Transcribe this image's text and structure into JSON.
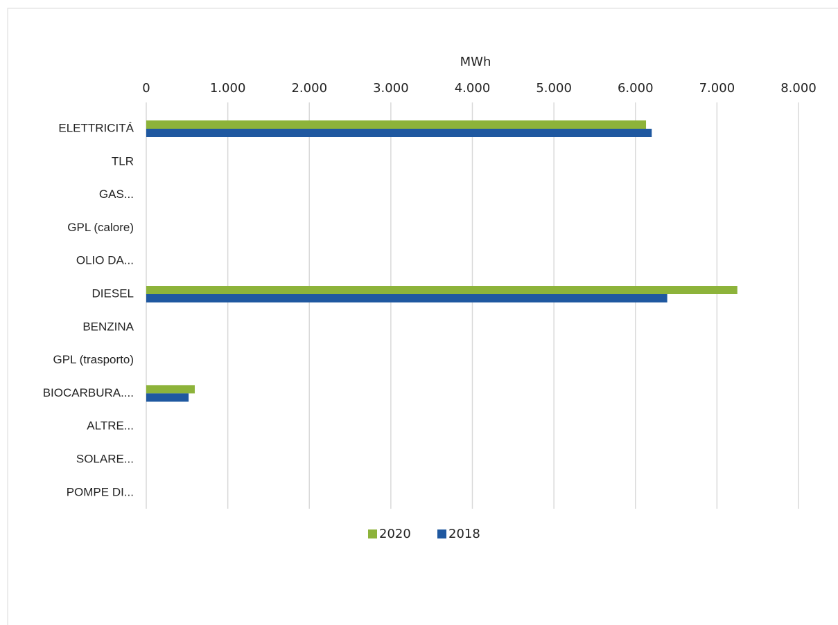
{
  "chart_data": {
    "type": "bar",
    "orientation": "horizontal",
    "x_label": "MWh",
    "categories": [
      "ELETTRICITÁ",
      "TLR",
      "GAS...",
      "GPL (calore)",
      "OLIO DA...",
      "DIESEL",
      "BENZINA",
      "GPL (trasporto)",
      "BIOCARBURA....",
      "ALTRE...",
      "SOLARE...",
      "POMPE DI..."
    ],
    "series": [
      {
        "name": "2020",
        "color": "#8db33a",
        "values": [
          6130,
          0,
          0,
          0,
          0,
          7250,
          0,
          0,
          595,
          0,
          0,
          0
        ]
      },
      {
        "name": "2018",
        "color": "#1f58a0",
        "values": [
          6200,
          0,
          0,
          0,
          0,
          6390,
          0,
          0,
          520,
          0,
          0,
          0
        ]
      }
    ],
    "xlim": [
      0,
      8000
    ],
    "xticks": [
      0,
      {
        "value": 1000,
        "label": "1.000"
      },
      {
        "value": 2000,
        "label": "2.000"
      },
      {
        "value": 3000,
        "label": "3.000"
      },
      {
        "value": 4000,
        "label": "4.000"
      },
      {
        "value": 5000,
        "label": "5.000"
      },
      {
        "value": 6000,
        "label": "6.000"
      },
      {
        "value": 7000,
        "label": "7.000"
      },
      {
        "value": 8000,
        "label": "8.000"
      }
    ],
    "grid": true,
    "legend": "bottom"
  }
}
